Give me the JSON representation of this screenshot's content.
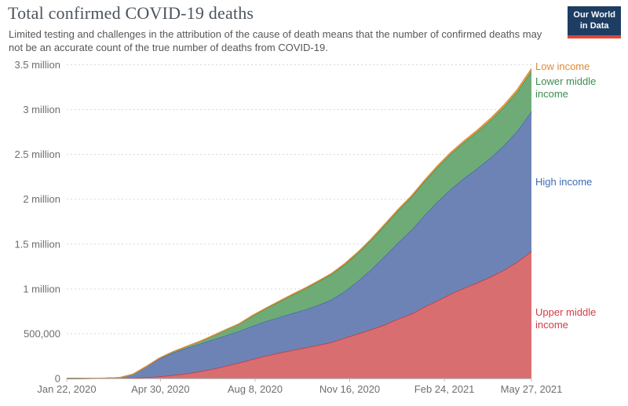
{
  "header": {
    "title": "Total confirmed COVID-19 deaths",
    "subtitle": "Limited testing and challenges in the attribution of the cause of death means that the number of confirmed deaths may not be an accurate count of the true number of deaths from COVID-19.",
    "logo": {
      "line1": "Our World",
      "line2": "in Data",
      "bg": "#1d3d63",
      "accent": "#e0453a"
    }
  },
  "legend": {
    "items": [
      {
        "label": "Low income",
        "color": "#DD8A39"
      },
      {
        "label": "Lower middle income",
        "color": "#3C8E51"
      },
      {
        "label": "High income",
        "color": "#3D6CB3"
      },
      {
        "label": "Upper middle income",
        "color": "#D23D45"
      }
    ]
  },
  "chart_data": {
    "type": "area",
    "stacked": true,
    "title": "Total confirmed COVID-19 deaths",
    "xlabel": "",
    "ylabel": "",
    "grid": "horizontal-dashed",
    "legend_position": "right-of-plot",
    "ylim": [
      0,
      3500000
    ],
    "y_ticks": [
      0,
      500000,
      1000000,
      1500000,
      2000000,
      2500000,
      3000000,
      3500000
    ],
    "y_tick_labels": [
      "0",
      "500,000",
      "1 million",
      "1.5 million",
      "2 million",
      "2.5 million",
      "3 million",
      "3.5 million"
    ],
    "x_start_date": "Jan 22, 2020",
    "x_end_date": "May 27, 2021",
    "x_tick_days": [
      0,
      99,
      199,
      299,
      399,
      491
    ],
    "x_tick_labels": [
      "Jan 22, 2020",
      "Apr 30, 2020",
      "Aug 8, 2020",
      "Nov 16, 2020",
      "Feb 24, 2021",
      "May 27, 2021"
    ],
    "x_days": [
      0,
      14,
      28,
      42,
      56,
      70,
      84,
      98,
      112,
      126,
      140,
      154,
      168,
      182,
      196,
      210,
      224,
      238,
      252,
      266,
      280,
      294,
      308,
      322,
      336,
      350,
      364,
      378,
      392,
      406,
      420,
      434,
      448,
      462,
      476,
      491
    ],
    "series": [
      {
        "name": "Upper middle income",
        "fill": "#D96E70",
        "line": "#C0393F",
        "values": [
          20,
          500,
          2100,
          3100,
          4400,
          8000,
          14000,
          23000,
          37000,
          55000,
          78000,
          106000,
          140000,
          175000,
          215000,
          253000,
          285000,
          315000,
          343000,
          373000,
          405000,
          455000,
          500000,
          548000,
          600000,
          665000,
          720000,
          800000,
          870000,
          945000,
          1010000,
          1070000,
          1135000,
          1210000,
          1300000,
          1420000
        ]
      },
      {
        "name": "High income",
        "fill": "#6E83B5",
        "line": "#3D6CB3",
        "values": [
          0,
          0,
          10,
          200,
          4400,
          38000,
          117000,
          198000,
          248000,
          283000,
          306000,
          325000,
          340000,
          353000,
          369000,
          384000,
          397000,
          411000,
          426000,
          447000,
          476000,
          520000,
          590000,
          672000,
          765000,
          850000,
          935000,
          1020000,
          1105000,
          1170000,
          1225000,
          1275000,
          1330000,
          1390000,
          1460000,
          1560000
        ]
      },
      {
        "name": "Lower middle income",
        "fill": "#6FAB77",
        "line": "#3C8E51",
        "values": [
          0,
          0,
          1,
          10,
          80,
          900,
          2700,
          6500,
          11000,
          16000,
          26000,
          44000,
          62000,
          79000,
          114000,
          142000,
          173000,
          205000,
          234000,
          263000,
          284000,
          300000,
          315000,
          330000,
          345000,
          358000,
          368000,
          378000,
          386000,
          394000,
          402000,
          410000,
          420000,
          430000,
          440000,
          450000
        ]
      },
      {
        "name": "Low income",
        "fill": "#E9B15D",
        "line": "#DD8A39",
        "values": [
          0,
          0,
          0,
          1,
          10,
          50,
          200,
          400,
          700,
          1000,
          1500,
          2000,
          2600,
          3200,
          3900,
          4600,
          5300,
          6000,
          6600,
          7200,
          7800,
          8400,
          9000,
          9700,
          10500,
          11300,
          12100,
          13000,
          14000,
          15000,
          16000,
          17000,
          18000,
          20000,
          22000,
          25000
        ]
      }
    ]
  }
}
